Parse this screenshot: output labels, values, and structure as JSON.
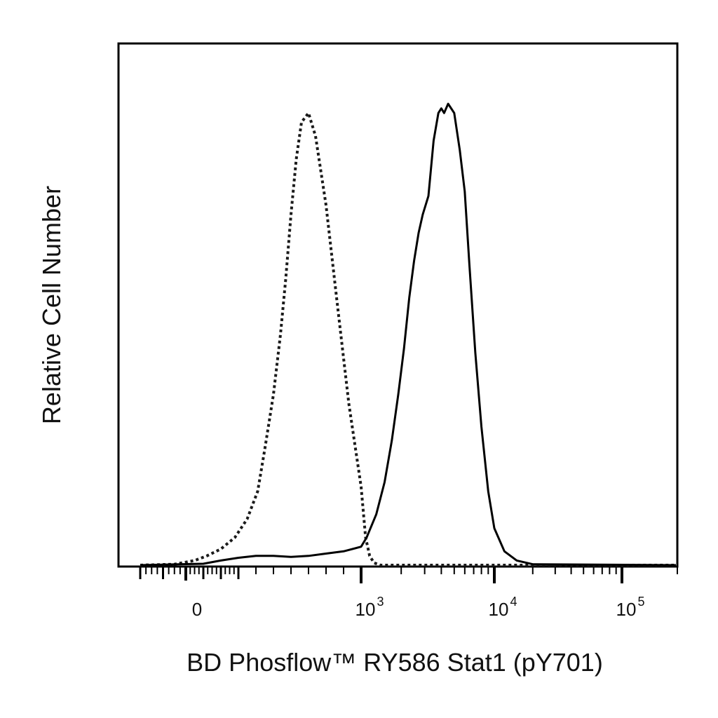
{
  "chart_data": {
    "type": "line",
    "title": "",
    "xlabel": "BD Phosflow™ RY586 Stat1 (pY701)",
    "ylabel": "Relative Cell Number",
    "x_scale": "biexponential",
    "xlim": [
      -200,
      200000
    ],
    "ylim": [
      0,
      1.0
    ],
    "grid": false,
    "x_tick_labels": [
      {
        "value": 0,
        "base": "0",
        "exp": ""
      },
      {
        "value": 1000,
        "base": "10",
        "exp": "3"
      },
      {
        "value": 10000,
        "base": "10",
        "exp": "4"
      },
      {
        "value": 100000,
        "base": "10",
        "exp": "5"
      }
    ],
    "series": [
      {
        "line_style": "dotted",
        "color": "#1a1a1a",
        "x": [
          -200,
          -50,
          50,
          120,
          200,
          280,
          350,
          410,
          450,
          500,
          540,
          570,
          600,
          630,
          660,
          700,
          740,
          800,
          860,
          930,
          1000,
          1080,
          1160,
          1250,
          1400,
          2000,
          5000,
          20000,
          200000
        ],
        "y": [
          0,
          0.002,
          0.01,
          0.02,
          0.035,
          0.06,
          0.1,
          0.16,
          0.25,
          0.37,
          0.5,
          0.62,
          0.76,
          0.88,
          0.96,
          0.98,
          0.93,
          0.78,
          0.58,
          0.35,
          0.17,
          0.06,
          0.02,
          0.005,
          0,
          0,
          0,
          0,
          0
        ]
      },
      {
        "line_style": "solid",
        "color": "#000000",
        "x": [
          -200,
          100,
          200,
          300,
          400,
          500,
          600,
          700,
          800,
          900,
          1000,
          1100,
          1300,
          1500,
          1700,
          1900,
          2100,
          2300,
          2500,
          2700,
          2900,
          3200,
          3500,
          3800,
          4000,
          4200,
          4500,
          5000,
          5500,
          6000,
          6500,
          7200,
          8000,
          9000,
          10000,
          12000,
          15000,
          20000,
          200000
        ],
        "y": [
          0,
          0.003,
          0.01,
          0.016,
          0.02,
          0.02,
          0.018,
          0.02,
          0.025,
          0.03,
          0.04,
          0.06,
          0.11,
          0.18,
          0.27,
          0.37,
          0.47,
          0.58,
          0.66,
          0.72,
          0.76,
          0.8,
          0.92,
          0.98,
          0.99,
          0.98,
          1.0,
          0.98,
          0.9,
          0.81,
          0.65,
          0.46,
          0.3,
          0.16,
          0.08,
          0.03,
          0.01,
          0.002,
          0
        ]
      }
    ]
  }
}
